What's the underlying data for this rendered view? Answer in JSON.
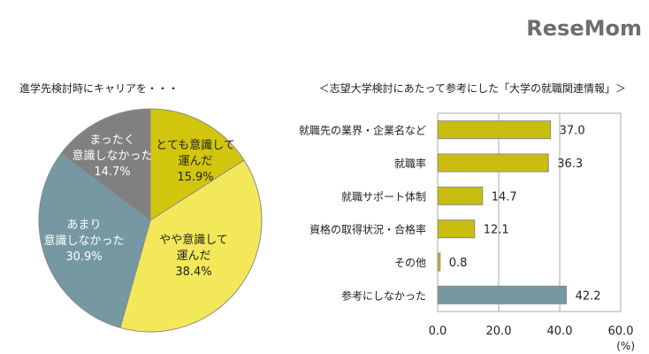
{
  "chart_data": [
    {
      "type": "pie",
      "title": "進学先検討時にキャリアを・・・",
      "slices": [
        {
          "label_lines": [
            "とても意識して",
            "運んだ"
          ],
          "value": 15.9,
          "value_label": "15.9%",
          "color": "#d2c50e",
          "text_color": "#222222"
        },
        {
          "label_lines": [
            "やや意識して",
            "運んだ"
          ],
          "value": 38.4,
          "value_label": "38.4%",
          "color": "#f3e85a",
          "text_color": "#222222"
        },
        {
          "label_lines": [
            "あまり",
            "意識しなかった"
          ],
          "value": 30.9,
          "value_label": "30.9%",
          "color": "#7598a2",
          "text_color": "#ffffff"
        },
        {
          "label_lines": [
            "まったく",
            "意識しなかった"
          ],
          "value": 14.7,
          "value_label": "14.7%",
          "color": "#808080",
          "text_color": "#ffffff"
        }
      ]
    },
    {
      "type": "bar",
      "orientation": "horizontal",
      "title": "＜志望大学検討にあたって参考にした「大学の就職関連情報」＞",
      "categories": [
        "就職先の業界・企業名など",
        "就職率",
        "就職サポート体制",
        "資格の取得状況・合格率",
        "その他",
        "参考にしなかった"
      ],
      "values": [
        37.0,
        36.3,
        14.7,
        12.1,
        0.8,
        42.2
      ],
      "value_labels": [
        "37.0",
        "36.3",
        "14.7",
        "12.1",
        "0.8",
        "42.2"
      ],
      "colors": [
        "#c9bd10",
        "#c9bd10",
        "#c9bd10",
        "#c9bd10",
        "#c9bd10",
        "#7598a2"
      ],
      "xlim": [
        0,
        60
      ],
      "xticks": [
        "0.0",
        "20.0",
        "40.0",
        "60.0"
      ],
      "xunit": "(%)",
      "grid": true
    }
  ],
  "watermark": "ReseMom"
}
